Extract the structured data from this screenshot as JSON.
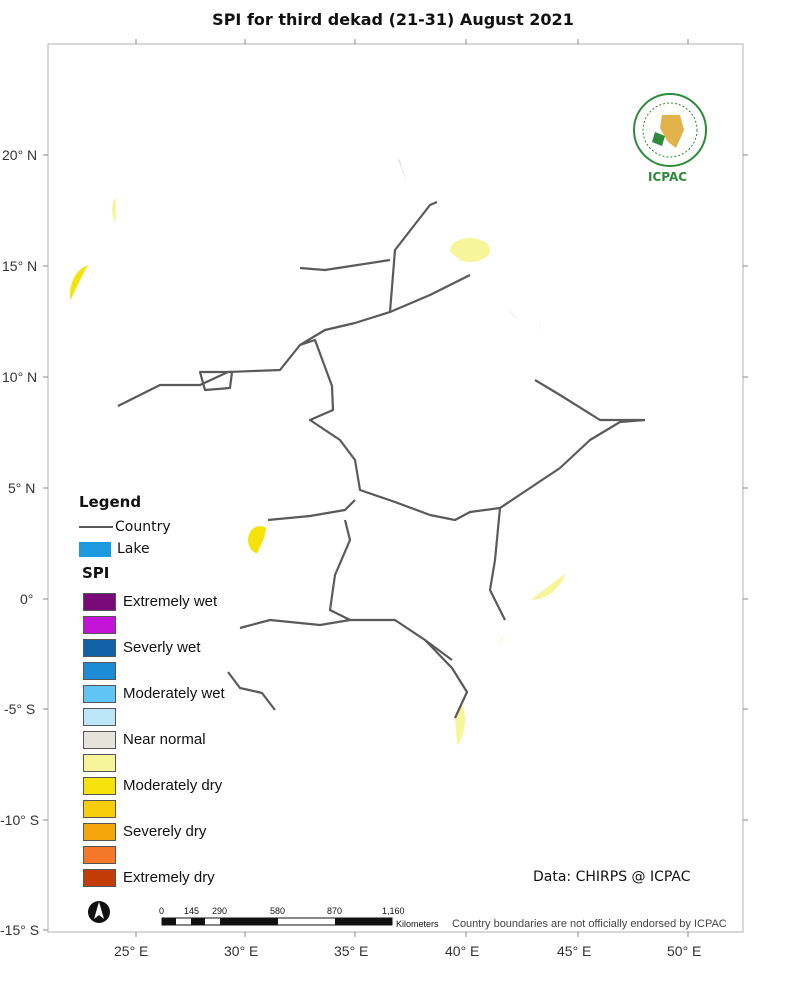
{
  "map": {
    "title": "SPI   for   third dekad (21-31) August  2021",
    "lat_ticks": [
      "20° N",
      "15° N",
      "10° N",
      "5° N",
      "0°",
      "-5° S",
      "-10° S",
      "-15° S"
    ],
    "lon_ticks": [
      "25° E",
      "30° E",
      "35° E",
      "40° E",
      "45° E",
      "50° E"
    ]
  },
  "legend": {
    "title": "Legend",
    "country_label": "Country",
    "lake_label": "Lake",
    "spi_title": "SPI",
    "spi_classes": [
      {
        "label": "Extremely wet",
        "color": "#7a0a7a"
      },
      {
        "label": "",
        "color": "#c414d8"
      },
      {
        "label": "Severly wet",
        "color": "#1262a8"
      },
      {
        "label": "",
        "color": "#1e8bd6"
      },
      {
        "label": "Moderately wet",
        "color": "#62c3f5"
      },
      {
        "label": "",
        "color": "#bde6f8"
      },
      {
        "label": "Near normal",
        "color": "#e6e3db"
      },
      {
        "label": "",
        "color": "#f7f59a"
      },
      {
        "label": "Moderately dry",
        "color": "#f5e20a"
      },
      {
        "label": "",
        "color": "#f8cd0c"
      },
      {
        "label": "Severely dry",
        "color": "#f4a60a"
      },
      {
        "label": "",
        "color": "#f5782a"
      },
      {
        "label": "Extremely dry",
        "color": "#c23c08"
      }
    ],
    "lake_color": "#1e9be0"
  },
  "logo": {
    "text": "ICPAC",
    "icon": "igad-logo-icon"
  },
  "data_credit": "Data: CHIRPS @ ICPAC",
  "scale_bar": {
    "labels": [
      "0",
      "145",
      "290",
      "580",
      "870",
      "1,160"
    ],
    "unit": "Kilometers"
  },
  "north_arrow": {
    "icon": "north-arrow-icon"
  },
  "disclaimer": "Country boundaries are not officially endorsed by ICPAC"
}
